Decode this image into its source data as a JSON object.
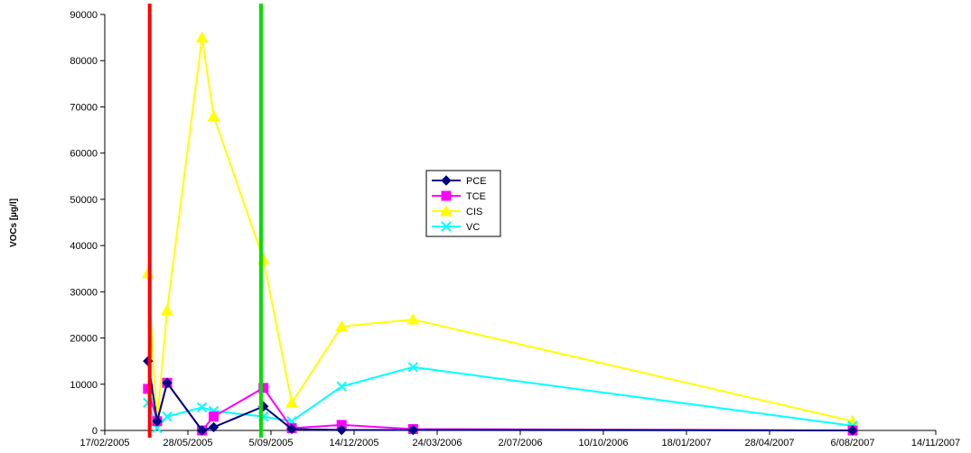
{
  "chart_data": {
    "type": "line",
    "title": "",
    "xlabel": "",
    "ylabel": "VOCs [µg/l]",
    "ylim": [
      0,
      90000
    ],
    "yticks": [
      "0",
      "10000",
      "20000",
      "30000",
      "40000",
      "50000",
      "60000",
      "70000",
      "80000",
      "90000"
    ],
    "xlim": [
      "2005-02-17",
      "2007-11-14"
    ],
    "xticks": [
      "17/02/2005",
      "28/05/2005",
      "5/09/2005",
      "14/12/2005",
      "24/03/2006",
      "2/07/2006",
      "10/10/2006",
      "18/01/2007",
      "28/04/2007",
      "6/08/2007",
      "14/11/2007"
    ],
    "grid": false,
    "legend": "center",
    "vertical_lines": [
      {
        "x": "2005-04-12",
        "color": "#ff0000"
      },
      {
        "x": "2005-08-24",
        "color": "#00dd00"
      }
    ],
    "series": [
      {
        "name": "PCE",
        "color": "#000080",
        "marker": "diamond",
        "points": [
          [
            "2005-04-10",
            15000
          ],
          [
            "2005-04-21",
            2000
          ],
          [
            "2005-05-03",
            10300
          ],
          [
            "2005-06-14",
            0
          ],
          [
            "2005-06-28",
            700
          ],
          [
            "2005-08-27",
            5200
          ],
          [
            "2005-09-30",
            300
          ],
          [
            "2005-11-29",
            100
          ],
          [
            "2006-02-23",
            100
          ],
          [
            "2007-08-06",
            0
          ]
        ]
      },
      {
        "name": "TCE",
        "color": "#ff00ff",
        "marker": "square",
        "points": [
          [
            "2005-04-10",
            9000
          ],
          [
            "2005-04-21",
            2000
          ],
          [
            "2005-05-03",
            10300
          ],
          [
            "2005-06-14",
            0
          ],
          [
            "2005-06-28",
            3000
          ],
          [
            "2005-08-27",
            9200
          ],
          [
            "2005-09-30",
            500
          ],
          [
            "2005-11-29",
            1200
          ],
          [
            "2006-02-23",
            300
          ],
          [
            "2007-08-06",
            0
          ]
        ]
      },
      {
        "name": "CIS",
        "color": "#ffff00",
        "marker": "triangle",
        "points": [
          [
            "2005-04-10",
            34000
          ],
          [
            "2005-04-21",
            2000
          ],
          [
            "2005-05-03",
            26000
          ],
          [
            "2005-06-14",
            85000
          ],
          [
            "2005-06-28",
            68000
          ],
          [
            "2005-08-27",
            37000
          ],
          [
            "2005-09-30",
            6000
          ],
          [
            "2005-11-29",
            22500
          ],
          [
            "2006-02-23",
            24000
          ],
          [
            "2007-08-06",
            2000
          ]
        ]
      },
      {
        "name": "VC",
        "color": "#00ffff",
        "marker": "x",
        "points": [
          [
            "2005-04-10",
            6000
          ],
          [
            "2005-04-21",
            500
          ],
          [
            "2005-05-03",
            3000
          ],
          [
            "2005-06-14",
            5000
          ],
          [
            "2005-06-28",
            4200
          ],
          [
            "2005-08-27",
            3000
          ],
          [
            "2005-09-30",
            2000
          ],
          [
            "2005-11-29",
            9500
          ],
          [
            "2006-02-23",
            13700
          ],
          [
            "2007-08-06",
            1000
          ]
        ]
      }
    ]
  }
}
